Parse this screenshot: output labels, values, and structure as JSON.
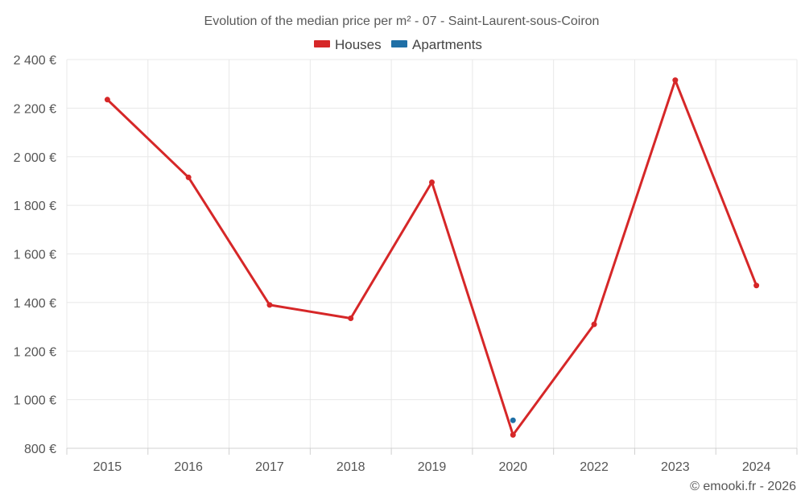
{
  "chart_data": {
    "type": "line",
    "title": "Evolution of the median price per m² - 07 - Saint-Laurent-sous-Coiron",
    "categories": [
      "2015",
      "2016",
      "2017",
      "2018",
      "2019",
      "2020",
      "2022",
      "2023",
      "2024"
    ],
    "ylim": [
      800,
      2400
    ],
    "yticks": [
      800,
      1000,
      1200,
      1400,
      1600,
      1800,
      2000,
      2200,
      2400
    ],
    "ytick_labels": [
      "800 €",
      "1 000 €",
      "1 200 €",
      "1 400 €",
      "1 600 €",
      "1 800 €",
      "2 000 €",
      "2 200 €",
      "2 400 €"
    ],
    "series": [
      {
        "name": "Houses",
        "color": "#d62728",
        "values": [
          2235,
          1915,
          1390,
          1335,
          1895,
          855,
          1310,
          2315,
          1470
        ]
      },
      {
        "name": "Apartments",
        "color": "#1f6fa6",
        "values": [
          null,
          null,
          null,
          null,
          null,
          915,
          null,
          null,
          null
        ]
      }
    ],
    "xlabel": "",
    "ylabel": "",
    "legend_position": "top-center",
    "grid": true
  },
  "credit": "© emooki.fr - 2026"
}
